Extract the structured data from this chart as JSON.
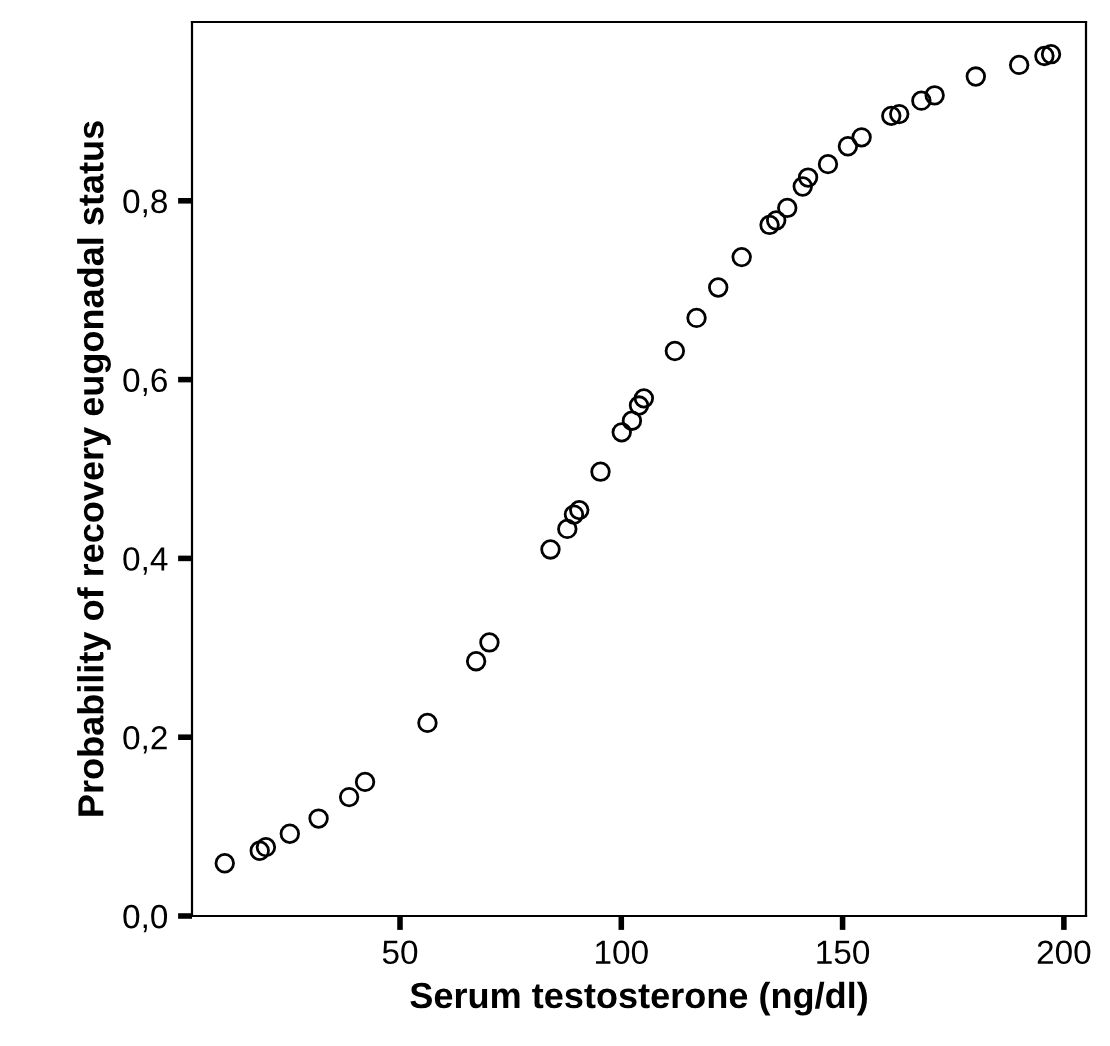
{
  "chart_data": {
    "type": "scatter",
    "xlabel": "Serum testosterone (ng/dl)",
    "ylabel": "Probability of recovery eugonadal status",
    "x": [
      10.4,
      18.3,
      19.7,
      25.1,
      31.6,
      38.5,
      42.1,
      56.2,
      67.2,
      70.2,
      84.0,
      87.8,
      89.3,
      90.5,
      95.3,
      100.1,
      102.4,
      104.0,
      105.1,
      112.1,
      117.0,
      121.9,
      127.2,
      133.5,
      135.0,
      137.5,
      141.0,
      142.2,
      146.7,
      151.2,
      154.3,
      161.0,
      162.8,
      167.8,
      170.8,
      180.1,
      189.9,
      195.6,
      197.1
    ],
    "series": [
      {
        "color": "#000000",
        "values": [
          0.059,
          0.073,
          0.077,
          0.092,
          0.109,
          0.133,
          0.15,
          0.216,
          0.285,
          0.306,
          0.41,
          0.433,
          0.449,
          0.454,
          0.497,
          0.541,
          0.554,
          0.571,
          0.579,
          0.632,
          0.669,
          0.703,
          0.737,
          0.773,
          0.778,
          0.792,
          0.816,
          0.826,
          0.841,
          0.861,
          0.871,
          0.895,
          0.897,
          0.912,
          0.918,
          0.939,
          0.952,
          0.962,
          0.964
        ]
      }
    ],
    "xlim": [
      3,
      205
    ],
    "ylim": [
      0,
      1
    ],
    "xticks": [
      50,
      100,
      150,
      200
    ],
    "yticks": [
      {
        "value": 0,
        "label": "0,0"
      },
      {
        "value": 0.2,
        "label": "0,2"
      },
      {
        "value": 0.4,
        "label": "0,4"
      },
      {
        "value": 0.6,
        "label": "0,6"
      },
      {
        "value": 0.8,
        "label": "0,8"
      }
    ],
    "marker": "circle",
    "grid": false,
    "legend": false
  }
}
